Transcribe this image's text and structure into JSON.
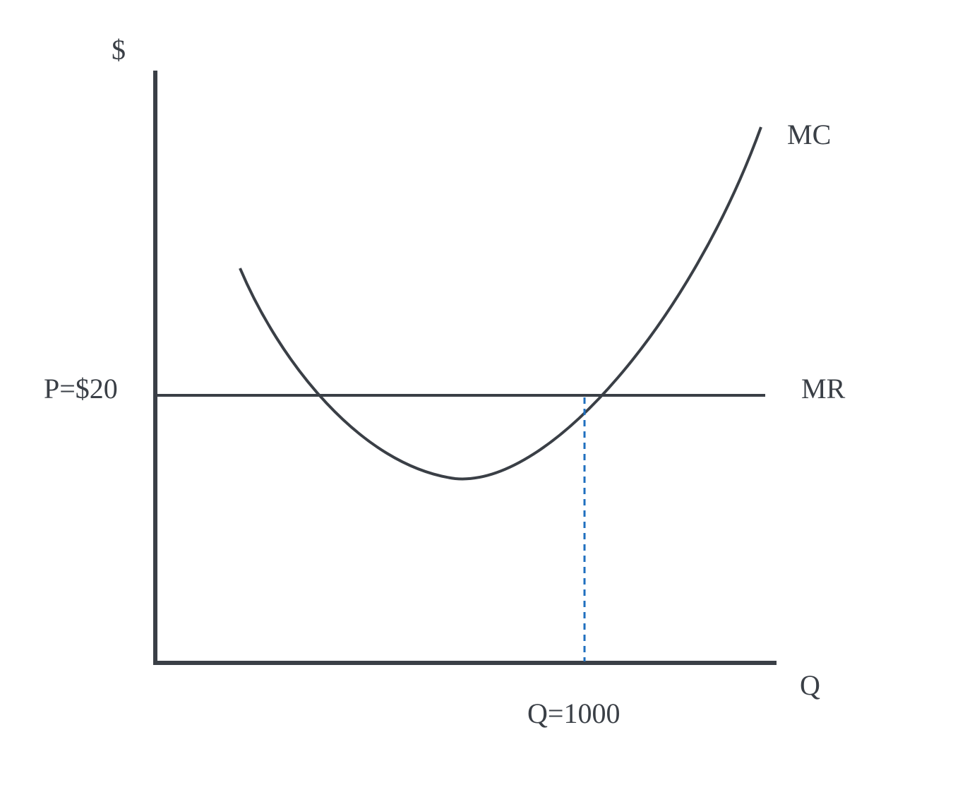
{
  "chart_data": {
    "type": "line",
    "ylabel": "$",
    "xlabel": "Q",
    "colors": {
      "axes": "#3a3f46",
      "curves": "#3a3f46",
      "guide": "#1f6fbf"
    },
    "series": [
      {
        "name": "MC",
        "shape": "u-shaped"
      },
      {
        "name": "MR",
        "shape": "horizontal"
      }
    ],
    "annotations": {
      "price_label": "P=$20",
      "quantity_label": "Q=1000"
    },
    "grid": false
  }
}
